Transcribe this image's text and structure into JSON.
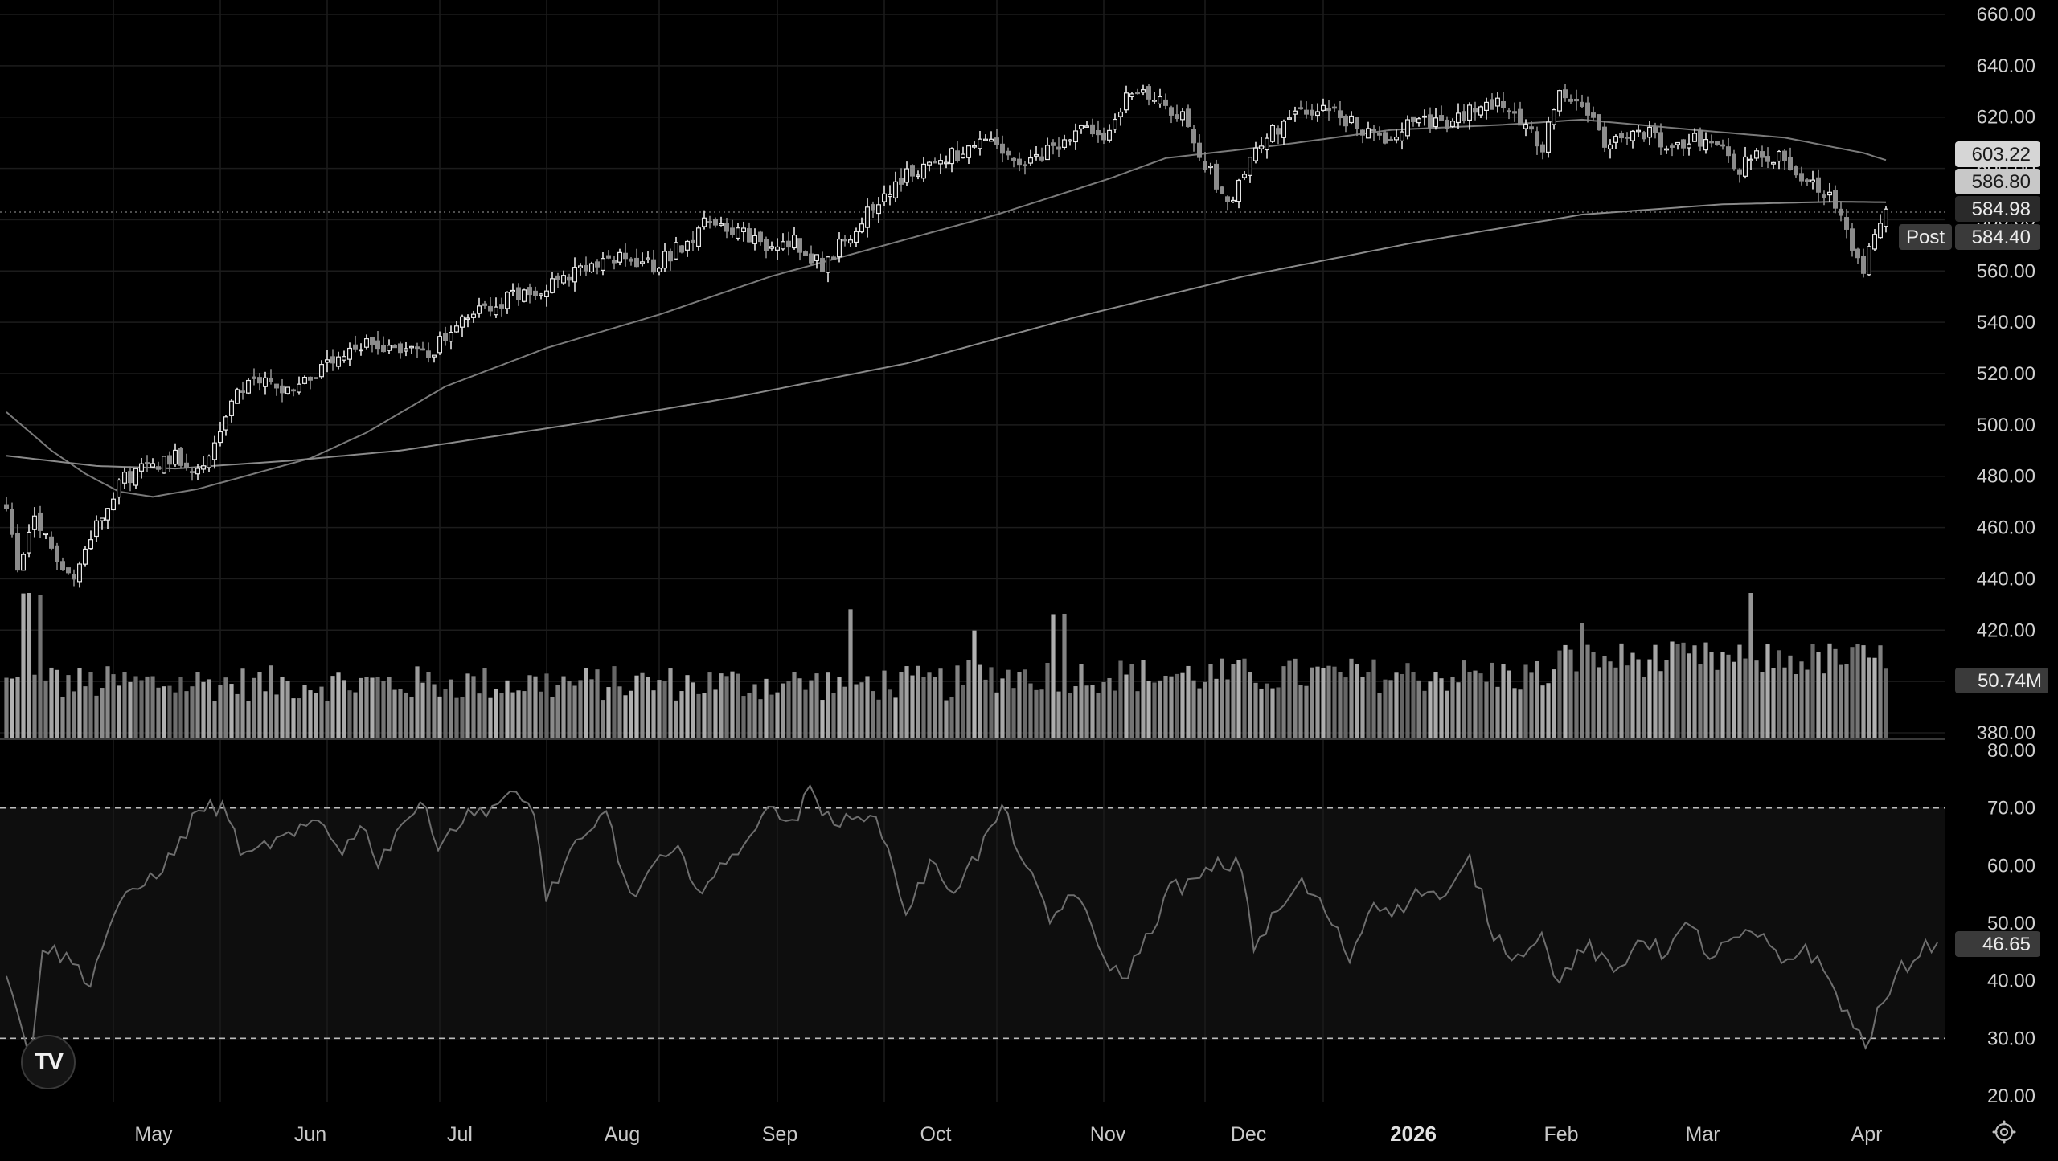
{
  "chart_data": {
    "type": "candlestick",
    "timeframe": "daily",
    "x_tick_labels": [
      "May",
      "Jun",
      "Jul",
      "Aug",
      "Sep",
      "Oct",
      "Nov",
      "Dec",
      "2026",
      "Feb",
      "Mar",
      "Apr"
    ],
    "price_axis": {
      "ticks": [
        "660.00",
        "640.00",
        "620.00",
        "600.00",
        "580.00",
        "560.00",
        "540.00",
        "520.00",
        "500.00",
        "480.00",
        "460.00",
        "440.00",
        "420.00",
        "400.00",
        "380.00"
      ],
      "ylim": [
        380,
        660
      ]
    },
    "rsi_axis": {
      "ticks": [
        "80.00",
        "70.00",
        "60.00",
        "50.00",
        "40.00",
        "30.00",
        "20.00"
      ],
      "ylim": [
        20,
        80
      ],
      "band": [
        30,
        70
      ]
    },
    "price_anchors": [
      [
        0,
        470
      ],
      [
        2,
        442
      ],
      [
        5,
        462
      ],
      [
        8,
        452
      ],
      [
        12,
        440
      ],
      [
        16,
        462
      ],
      [
        20,
        478
      ],
      [
        25,
        484
      ],
      [
        30,
        488
      ],
      [
        35,
        482
      ],
      [
        40,
        510
      ],
      [
        45,
        518
      ],
      [
        50,
        514
      ],
      [
        55,
        520
      ],
      [
        60,
        526
      ],
      [
        65,
        532
      ],
      [
        70,
        530
      ],
      [
        75,
        528
      ],
      [
        80,
        538
      ],
      [
        85,
        546
      ],
      [
        90,
        550
      ],
      [
        95,
        554
      ],
      [
        100,
        558
      ],
      [
        105,
        562
      ],
      [
        110,
        565
      ],
      [
        115,
        562
      ],
      [
        120,
        570
      ],
      [
        125,
        580
      ],
      [
        130,
        576
      ],
      [
        135,
        568
      ],
      [
        140,
        572
      ],
      [
        145,
        562
      ],
      [
        150,
        575
      ],
      [
        155,
        588
      ],
      [
        160,
        597
      ],
      [
        165,
        603
      ],
      [
        170,
        606
      ],
      [
        175,
        610
      ],
      [
        180,
        600
      ],
      [
        185,
        606
      ],
      [
        190,
        616
      ],
      [
        195,
        610
      ],
      [
        200,
        632
      ],
      [
        205,
        625
      ],
      [
        210,
        618
      ],
      [
        212,
        606
      ],
      [
        215,
        594
      ],
      [
        218,
        586
      ],
      [
        220,
        600
      ],
      [
        225,
        614
      ],
      [
        230,
        622
      ],
      [
        235,
        624
      ],
      [
        240,
        616
      ],
      [
        245,
        610
      ],
      [
        250,
        621
      ],
      [
        255,
        616
      ],
      [
        260,
        622
      ],
      [
        265,
        626
      ],
      [
        270,
        618
      ],
      [
        273,
        608
      ],
      [
        276,
        632
      ],
      [
        280,
        626
      ],
      [
        284,
        608
      ],
      [
        288,
        612
      ],
      [
        292,
        614
      ],
      [
        296,
        606
      ],
      [
        300,
        612
      ],
      [
        304,
        610
      ],
      [
        308,
        600
      ],
      [
        312,
        606
      ],
      [
        316,
        604
      ],
      [
        320,
        596
      ],
      [
        324,
        590
      ],
      [
        326,
        580
      ],
      [
        328,
        570
      ],
      [
        330,
        562
      ],
      [
        332,
        574
      ],
      [
        334,
        586
      ]
    ],
    "sma_short": {
      "period": 50,
      "points": [
        [
          0,
          505
        ],
        [
          8,
          490
        ],
        [
          14,
          481
        ],
        [
          20,
          474
        ],
        [
          26,
          472
        ],
        [
          34,
          475
        ],
        [
          44,
          481
        ],
        [
          54,
          487
        ],
        [
          64,
          497
        ],
        [
          78,
          515
        ],
        [
          96,
          530
        ],
        [
          116,
          543
        ],
        [
          136,
          558
        ],
        [
          156,
          570
        ],
        [
          176,
          582
        ],
        [
          196,
          596
        ],
        [
          206,
          604
        ],
        [
          226,
          609
        ],
        [
          246,
          615
        ],
        [
          266,
          617
        ],
        [
          280,
          619
        ],
        [
          300,
          615
        ],
        [
          316,
          612
        ],
        [
          330,
          606
        ],
        [
          334,
          603.22
        ]
      ]
    },
    "sma_long": {
      "period": 200,
      "points": [
        [
          0,
          488
        ],
        [
          16,
          484
        ],
        [
          30,
          483
        ],
        [
          50,
          486
        ],
        [
          70,
          490
        ],
        [
          100,
          500
        ],
        [
          130,
          511
        ],
        [
          160,
          524
        ],
        [
          190,
          542
        ],
        [
          220,
          558
        ],
        [
          250,
          571
        ],
        [
          280,
          582
        ],
        [
          305,
          586
        ],
        [
          325,
          587
        ],
        [
          334,
          586.8
        ]
      ]
    },
    "rsi_anchors": [
      [
        0,
        42
      ],
      [
        2,
        33
      ],
      [
        4,
        27
      ],
      [
        6,
        46
      ],
      [
        10,
        44
      ],
      [
        14,
        40
      ],
      [
        18,
        52
      ],
      [
        24,
        58
      ],
      [
        28,
        62
      ],
      [
        32,
        70
      ],
      [
        36,
        70
      ],
      [
        40,
        61
      ],
      [
        44,
        64
      ],
      [
        48,
        65
      ],
      [
        52,
        68
      ],
      [
        56,
        63
      ],
      [
        60,
        67
      ],
      [
        62,
        60
      ],
      [
        66,
        68
      ],
      [
        70,
        70
      ],
      [
        72,
        64
      ],
      [
        76,
        68
      ],
      [
        80,
        70
      ],
      [
        84,
        72
      ],
      [
        88,
        70
      ],
      [
        90,
        54
      ],
      [
        94,
        62
      ],
      [
        98,
        66
      ],
      [
        100,
        70
      ],
      [
        104,
        54
      ],
      [
        108,
        60
      ],
      [
        112,
        62
      ],
      [
        116,
        56
      ],
      [
        120,
        60
      ],
      [
        124,
        66
      ],
      [
        128,
        70
      ],
      [
        132,
        68
      ],
      [
        134,
        74
      ],
      [
        138,
        66
      ],
      [
        142,
        70
      ],
      [
        146,
        66
      ],
      [
        150,
        52
      ],
      [
        154,
        60
      ],
      [
        158,
        56
      ],
      [
        162,
        62
      ],
      [
        166,
        70
      ],
      [
        170,
        60
      ],
      [
        174,
        50
      ],
      [
        178,
        56
      ],
      [
        182,
        46
      ],
      [
        186,
        40
      ],
      [
        190,
        47
      ],
      [
        194,
        56
      ],
      [
        198,
        57
      ],
      [
        202,
        60
      ],
      [
        206,
        60
      ],
      [
        208,
        46
      ],
      [
        212,
        52
      ],
      [
        216,
        57
      ],
      [
        220,
        52
      ],
      [
        224,
        44
      ],
      [
        228,
        54
      ],
      [
        232,
        52
      ],
      [
        236,
        56
      ],
      [
        240,
        54
      ],
      [
        244,
        61
      ],
      [
        248,
        48
      ],
      [
        252,
        44
      ],
      [
        256,
        49
      ],
      [
        258,
        40
      ],
      [
        260,
        42
      ],
      [
        264,
        46
      ],
      [
        268,
        41
      ],
      [
        270,
        43
      ],
      [
        272,
        48
      ],
      [
        276,
        45
      ],
      [
        280,
        49
      ],
      [
        282,
        48
      ],
      [
        284,
        44
      ],
      [
        288,
        47
      ],
      [
        292,
        48
      ],
      [
        296,
        43
      ],
      [
        300,
        46
      ],
      [
        304,
        40
      ],
      [
        306,
        36
      ],
      [
        308,
        32
      ],
      [
        310,
        29
      ],
      [
        312,
        34
      ],
      [
        316,
        42
      ],
      [
        320,
        46
      ],
      [
        322,
        46.65
      ]
    ],
    "volume_profile": {
      "start_index": 0,
      "spikes": [
        [
          3,
          3.4
        ],
        [
          4,
          2.6
        ],
        [
          6,
          2.2
        ],
        [
          8,
          1.6
        ],
        [
          150,
          1.8
        ],
        [
          172,
          1.6
        ],
        [
          186,
          2.0
        ],
        [
          188,
          1.8
        ],
        [
          280,
          1.7
        ],
        [
          310,
          1.6
        ]
      ]
    },
    "last_values": {
      "sma_short": "603.22",
      "sma_long": "586.80",
      "close": "584.98",
      "post_label": "Post",
      "post_price": "584.40",
      "volume": "50.74M",
      "rsi": "46.65"
    }
  }
}
